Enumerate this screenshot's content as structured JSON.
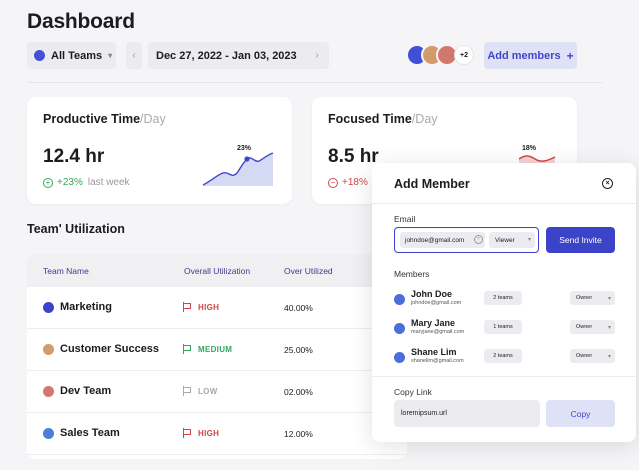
{
  "header": {
    "title": "Dashboard"
  },
  "toolbar": {
    "team_select": {
      "label": "All Teams",
      "color": "#4350d8"
    },
    "date_range": "Dec 27, 2022 - Jan 03, 2023",
    "prev_icon": "chevron-left-icon",
    "next_icon": "chevron-right-icon",
    "calendar_icon": "calendar-icon",
    "avatars": [
      {
        "color": "#3f4fd6"
      },
      {
        "color": "#d39a6c"
      },
      {
        "color": "#d2786a"
      }
    ],
    "avatar_more": "+2",
    "add_members_label": "Add members",
    "add_members_icon": "+"
  },
  "cards": [
    {
      "title": "Productive Time",
      "title_suffix": "/Day",
      "value": "12.4 hr",
      "delta": "+23%",
      "delta_icon": "+",
      "delta_direction": "up",
      "delta_note": "last week",
      "spark_label": "23%",
      "spark_color": "#3c49c7",
      "spark_fill": "#d6d9f3"
    },
    {
      "title": "Focused Time",
      "title_suffix": "/Day",
      "value": "8.5 hr",
      "delta": "+18%",
      "delta_icon": "−",
      "delta_direction": "down",
      "spark_label": "18%",
      "spark_color": "#d24545"
    }
  ],
  "utilization": {
    "title": "Team' Utilization",
    "columns": [
      "Team Name",
      "Overall Utilization",
      "Over Utilized"
    ],
    "rows": [
      {
        "name": "Marketing",
        "color": "#3b44c8",
        "utilization": "HIGH",
        "util_color": "#d24545",
        "over": "40.00%"
      },
      {
        "name": "Customer Success",
        "color": "#d39a6c",
        "utilization": "MEDIUM",
        "util_color": "#36a55a",
        "over": "25.00%"
      },
      {
        "name": "Dev Team",
        "color": "#d2786a",
        "utilization": "LOW",
        "util_color": "#a8a8a8",
        "over": "02.00%"
      },
      {
        "name": "Sales Team",
        "color": "#4a7fd6",
        "utilization": "HIGH",
        "util_color": "#d24545",
        "over": "12.00%"
      }
    ]
  },
  "modal": {
    "title": "Add Member",
    "close_icon": "×",
    "email_label": "Email",
    "email_value": "johndoe@gmail.com",
    "clear_icon": "×",
    "role_value": "Viewer",
    "send_label": "Send Invite",
    "members_label": "Members",
    "members": [
      {
        "name": "John Doe",
        "email": "johndoe@gmail.com",
        "teams": "2 teams",
        "role": "Owner"
      },
      {
        "name": "Mary Jane",
        "email": "maryjane@gmail.com",
        "teams": "1 teams",
        "role": "Owner"
      },
      {
        "name": "Shane Lim",
        "email": "shanelim@gmail.com",
        "teams": "2 teams",
        "role": "Owner"
      }
    ],
    "copy_label": "Copy Link",
    "copy_value": "loremipsum.url",
    "copy_button": "Copy"
  }
}
